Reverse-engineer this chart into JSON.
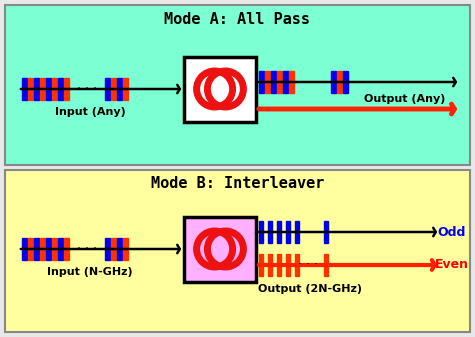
{
  "fig_width": 4.75,
  "fig_height": 3.37,
  "dpi": 100,
  "bg_color": "#e8e8e8",
  "panel_A_bg": "#7dffd4",
  "panel_B_bg": "#ffffa0",
  "panel_A_box_color": "#ffffff",
  "panel_B_box_color": "#ffb0ff",
  "box_edge_color": "#000000",
  "ring_color": "#ee1111",
  "bar_blue": "#0000ee",
  "bar_red": "#ff3300",
  "arrow_black": "#000000",
  "arrow_red": "#ff2200",
  "panel_border": "#888888",
  "panel_A_title": "Mode A: All Pass",
  "panel_B_title": "Mode B: Interleaver",
  "label_input_A": "Input (Any)",
  "label_output_A": "Output (Any)",
  "label_input_B": "Input (N-GHz)",
  "label_output_B": "Output (2N-GHz)",
  "label_odd": "Odd",
  "label_even": "Even",
  "title_fontsize": 11,
  "label_fontsize": 8,
  "odd_even_fontsize": 9
}
